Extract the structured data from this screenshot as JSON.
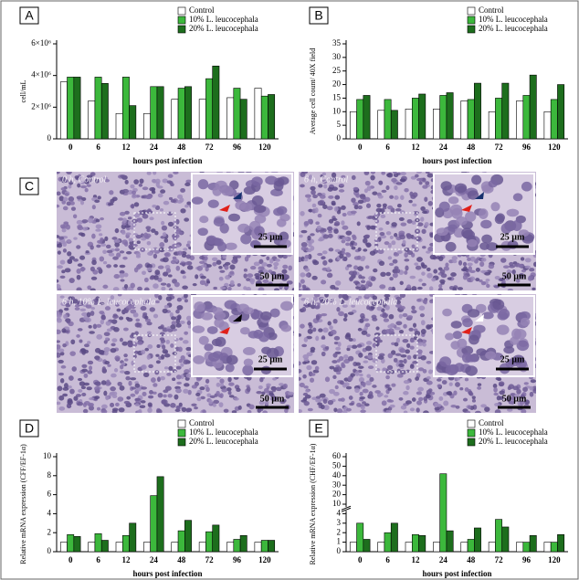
{
  "chart_data": [
    {
      "type": "bar",
      "panel": "A",
      "y_label": "cell/mL",
      "x_label": "hours post infection",
      "categories": [
        "0",
        "6",
        "12",
        "24",
        "48",
        "72",
        "96",
        "120"
      ],
      "series": [
        {
          "name": "Control",
          "color": "#ffffff",
          "values": [
            3600000,
            2400000,
            1600000,
            1600000,
            2500000,
            2500000,
            2600000,
            3200000
          ]
        },
        {
          "name": "10% L. leucocephala",
          "color": "#3cb83c",
          "values": [
            3900000,
            3900000,
            3900000,
            3300000,
            3200000,
            3800000,
            3200000,
            2700000
          ]
        },
        {
          "name": "20% L. leucocephala",
          "color": "#1d6e1d",
          "values": [
            3900000,
            3500000,
            2100000,
            3300000,
            3300000,
            4600000,
            2500000,
            2800000
          ]
        }
      ],
      "ylim": [
        0,
        6000000
      ],
      "yticks": [
        0,
        {
          "value": 2000000,
          "label": "2×10⁶"
        },
        {
          "value": 4000000,
          "label": "4×10⁶"
        },
        {
          "value": 6000000,
          "label": "6×10⁶"
        }
      ]
    },
    {
      "type": "bar",
      "panel": "B",
      "y_label": "Average cell count/ 40X field",
      "x_label": "hours post infection",
      "categories": [
        "0",
        "6",
        "12",
        "24",
        "48",
        "72",
        "96",
        "120"
      ],
      "series": [
        {
          "name": "Control",
          "color": "#ffffff",
          "values": [
            10,
            10.5,
            11,
            11,
            14,
            10,
            14,
            10
          ]
        },
        {
          "name": "10% L. leucocephala",
          "color": "#3cb83c",
          "values": [
            14.5,
            14.5,
            15,
            16,
            14.5,
            15,
            16,
            14.5
          ]
        },
        {
          "name": "20% L. leucocephala",
          "color": "#1d6e1d",
          "values": [
            16,
            10.5,
            16.5,
            17,
            20.5,
            20.5,
            23.5,
            20
          ]
        }
      ],
      "ylim": [
        0,
        35
      ],
      "yticks": [
        0,
        5,
        10,
        15,
        20,
        25,
        30,
        35
      ]
    },
    {
      "type": "bar",
      "panel": "D",
      "y_label": "Relative mRNA expression (CFF/EF-1α)",
      "x_label": "hours post infection",
      "categories": [
        "0",
        "6",
        "12",
        "24",
        "48",
        "72",
        "96",
        "120"
      ],
      "series": [
        {
          "name": "Control",
          "color": "#ffffff",
          "values": [
            1,
            1,
            1,
            1,
            1,
            1,
            1,
            1
          ]
        },
        {
          "name": "10% L. leucocephala",
          "color": "#3cb83c",
          "values": [
            1.8,
            1.9,
            1.7,
            5.9,
            2.2,
            2.1,
            1.3,
            1.2
          ]
        },
        {
          "name": "20% L. leucocephala",
          "color": "#1d6e1d",
          "values": [
            1.6,
            1.2,
            3,
            7.9,
            3.3,
            2.8,
            1.7,
            1.2
          ]
        }
      ],
      "ylim": [
        0,
        10
      ],
      "yticks": [
        0,
        2,
        4,
        6,
        8,
        10
      ]
    },
    {
      "type": "bar",
      "panel": "E",
      "y_label": "Relative mRNA expression (CHF/EF-1α)",
      "x_label": "hours post infection",
      "categories": [
        "0",
        "6",
        "12",
        "24",
        "48",
        "72",
        "96",
        "120"
      ],
      "series": [
        {
          "name": "Control",
          "color": "#ffffff",
          "values": [
            1,
            1,
            1,
            1,
            1,
            1,
            1,
            1
          ]
        },
        {
          "name": "10% L. leucocephala",
          "color": "#3cb83c",
          "values": [
            3,
            2,
            1.8,
            42,
            1.3,
            3.4,
            1,
            1
          ]
        },
        {
          "name": "20% L. leucocephala",
          "color": "#1d6e1d",
          "values": [
            1.3,
            3,
            1.7,
            2.2,
            2.5,
            2.6,
            1.7,
            1.8
          ]
        }
      ],
      "ylim": [
        0,
        60
      ],
      "yticks": [
        0,
        1,
        2,
        3,
        4,
        10,
        20,
        30,
        40,
        50,
        60
      ],
      "axis_break": true
    }
  ],
  "panel_c": {
    "panel": "C",
    "images": [
      {
        "label": "0 h, Control",
        "inset_scale": "25 µm",
        "scale": "50 µm"
      },
      {
        "label": "6 h, Control",
        "inset_scale": "25 µm",
        "scale": "50 µm"
      },
      {
        "label": "6 h, 10% L. leucocephala",
        "inset_scale": "25 µm",
        "scale": "50 µm"
      },
      {
        "label": "6 h, 20% L. leucocephala",
        "inset_scale": "25 µm",
        "scale": "50 µm"
      }
    ]
  }
}
